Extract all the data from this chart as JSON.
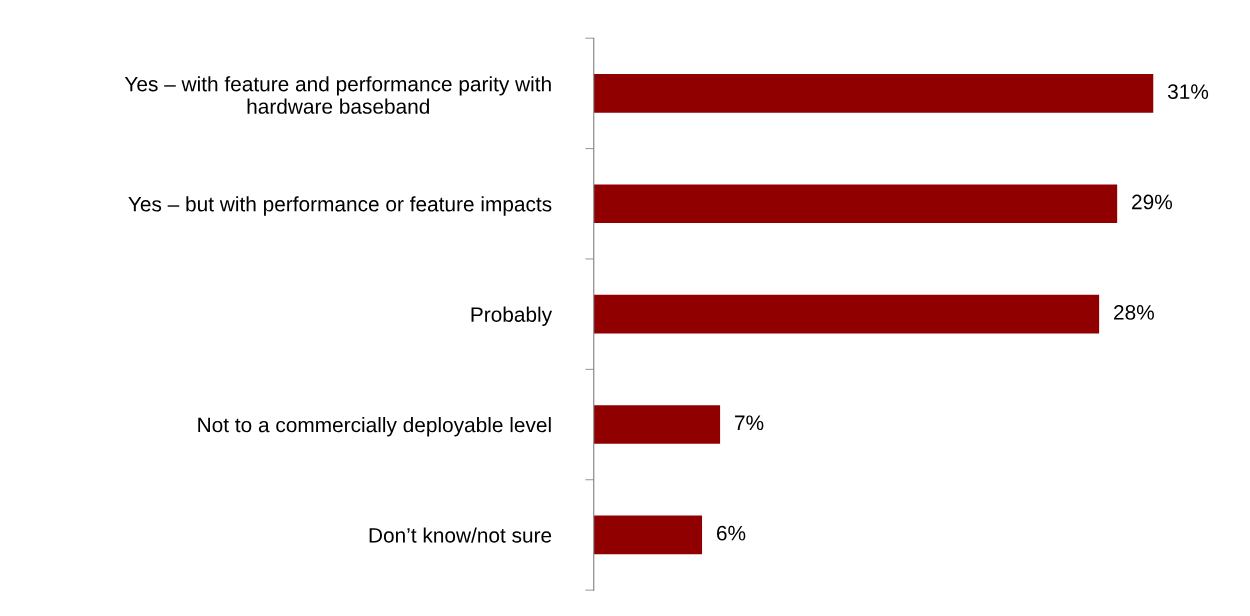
{
  "chart_data": {
    "type": "bar",
    "orientation": "horizontal",
    "categories": [
      "Yes – with feature and performance parity with\nhardware baseband",
      "Yes – but with performance or feature impacts",
      "Probably",
      "Not to a commercially deployable level",
      "Don’t know/not sure"
    ],
    "values": [
      31,
      29,
      28,
      7,
      6
    ],
    "value_labels": [
      "31%",
      "29%",
      "28%",
      "7%",
      "6%"
    ],
    "color": "#900000",
    "grid": false,
    "legend": false
  }
}
